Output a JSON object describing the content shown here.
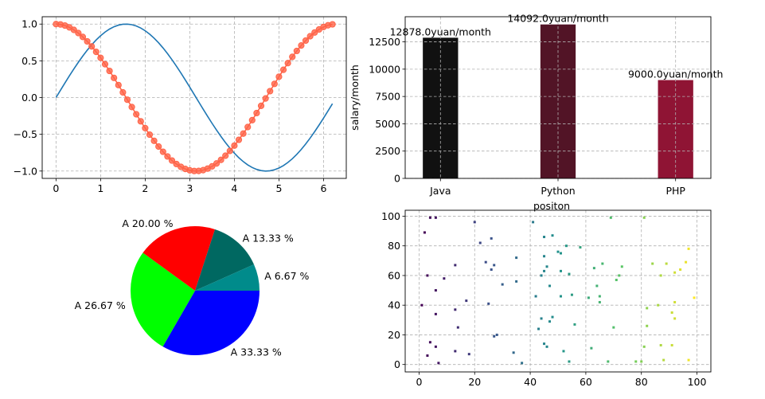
{
  "chart_data": [
    {
      "type": "line",
      "grid": true,
      "xlim": [
        -0.31,
        6.51
      ],
      "ylim": [
        -1.1,
        1.1
      ],
      "xticks": [
        0,
        1,
        2,
        3,
        4,
        5,
        6
      ],
      "yticks": [
        -1.0,
        -0.5,
        0.0,
        0.5,
        1.0
      ],
      "x_range": {
        "start": 0,
        "step": 0.1,
        "count": 63
      },
      "series": [
        {
          "function": "sin",
          "color": "#1f77b4",
          "style": "line"
        },
        {
          "function": "cos",
          "color": "#ff6347",
          "style": "line+markers"
        }
      ]
    },
    {
      "type": "bar",
      "grid": true,
      "categories": [
        "Java",
        "Python",
        "PHP"
      ],
      "x_positions": [
        0,
        1,
        2
      ],
      "values": [
        12878.0,
        14092.0,
        9000.0
      ],
      "data_labels": [
        "12878.0yuan/month",
        "14092.0yuan/month",
        "9000.0yuan/month"
      ],
      "colors": [
        "#111111",
        "#521426",
        "#8f1434"
      ],
      "xlabel": "positon",
      "ylabel": "salary/month",
      "ylim": [
        0,
        14800
      ],
      "yticks": [
        0,
        2500,
        5000,
        7500,
        10000,
        12500
      ]
    },
    {
      "type": "pie",
      "labels": [
        "A 33.33 %",
        "A 26.67 %",
        "A 20.00 %",
        "A 13.33 %",
        "A 6.67 %"
      ],
      "values": [
        33.33,
        26.67,
        20.0,
        13.33,
        6.67
      ],
      "colors": [
        "#0000ff",
        "#00ff00",
        "#ff0000",
        "#006861",
        "#008b8b"
      ]
    },
    {
      "type": "scatter",
      "grid": true,
      "xlim": [
        -5,
        105
      ],
      "ylim": [
        -5,
        104
      ],
      "xticks": [
        0,
        20,
        40,
        60,
        80,
        100
      ],
      "yticks": [
        0,
        20,
        40,
        60,
        80,
        100
      ],
      "colormap": "viridis",
      "points": [
        [
          1,
          40
        ],
        [
          2,
          89
        ],
        [
          3,
          6
        ],
        [
          3,
          60
        ],
        [
          4,
          99
        ],
        [
          4,
          15
        ],
        [
          6,
          99
        ],
        [
          6,
          50
        ],
        [
          6,
          34
        ],
        [
          6,
          12
        ],
        [
          7,
          1
        ],
        [
          9,
          58
        ],
        [
          13,
          9
        ],
        [
          13,
          37
        ],
        [
          13,
          67
        ],
        [
          14,
          25
        ],
        [
          17,
          43
        ],
        [
          18,
          7
        ],
        [
          20,
          96
        ],
        [
          22,
          82
        ],
        [
          24,
          69
        ],
        [
          25,
          41
        ],
        [
          26,
          85
        ],
        [
          26,
          64
        ],
        [
          27,
          67
        ],
        [
          27,
          19
        ],
        [
          28,
          20
        ],
        [
          30,
          54
        ],
        [
          34,
          8
        ],
        [
          35,
          72
        ],
        [
          35,
          56
        ],
        [
          37,
          1
        ],
        [
          41,
          96
        ],
        [
          42,
          46
        ],
        [
          43,
          24
        ],
        [
          44,
          31
        ],
        [
          44,
          60
        ],
        [
          45,
          14
        ],
        [
          45,
          86
        ],
        [
          45,
          73
        ],
        [
          45,
          63
        ],
        [
          46,
          12
        ],
        [
          46,
          66
        ],
        [
          47,
          29
        ],
        [
          47,
          53
        ],
        [
          48,
          32
        ],
        [
          48,
          87
        ],
        [
          50,
          76
        ],
        [
          51,
          75
        ],
        [
          51,
          63
        ],
        [
          51,
          46
        ],
        [
          52,
          9
        ],
        [
          53,
          80
        ],
        [
          54,
          61
        ],
        [
          54,
          2
        ],
        [
          55,
          47
        ],
        [
          56,
          27
        ],
        [
          58,
          79
        ],
        [
          61,
          45
        ],
        [
          62,
          11
        ],
        [
          63,
          65
        ],
        [
          64,
          53
        ],
        [
          65,
          46
        ],
        [
          65,
          42
        ],
        [
          66,
          68
        ],
        [
          68,
          2
        ],
        [
          69,
          99
        ],
        [
          70,
          25
        ],
        [
          71,
          57
        ],
        [
          72,
          60
        ],
        [
          73,
          66
        ],
        [
          78,
          2
        ],
        [
          80,
          2
        ],
        [
          81,
          99
        ],
        [
          81,
          12
        ],
        [
          82,
          38
        ],
        [
          82,
          26
        ],
        [
          84,
          68
        ],
        [
          86,
          40
        ],
        [
          87,
          60
        ],
        [
          87,
          13
        ],
        [
          88,
          3
        ],
        [
          89,
          68
        ],
        [
          91,
          35
        ],
        [
          91,
          13
        ],
        [
          92,
          42
        ],
        [
          92,
          31
        ],
        [
          92,
          62
        ],
        [
          94,
          64
        ],
        [
          96,
          69
        ],
        [
          97,
          78
        ],
        [
          97,
          3
        ],
        [
          99,
          45
        ]
      ]
    }
  ]
}
